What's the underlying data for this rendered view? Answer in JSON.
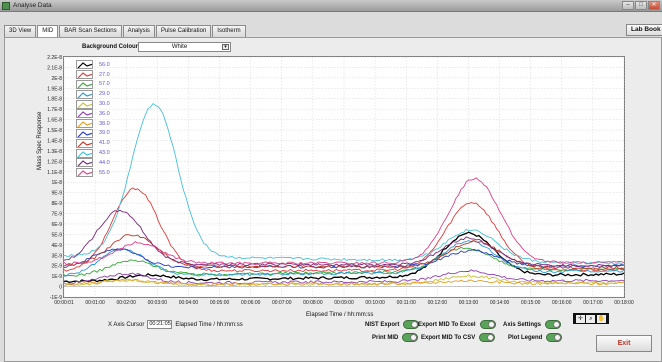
{
  "window": {
    "title": "Analyse Data"
  },
  "tabs": [
    "3D View",
    "MID",
    "BAR Scan Sections",
    "Analysis",
    "Pulse Calibration",
    "Isotherm"
  ],
  "active_tab": 1,
  "lab_book": "Lab Book",
  "background": {
    "label": "Background Colour",
    "value": "White"
  },
  "controls": {
    "x_cursor_label": "X Axis Cursor",
    "x_cursor_value": "00:21:05",
    "x_cursor_units": "Elapsed Time / hh:mm:ss",
    "nist_export": "NIST Export",
    "print_mid": "Print MID",
    "export_excel": "Export MID To Excel",
    "export_csv": "Export MID To CSV",
    "axis_settings": "Axis Settings",
    "plot_legend": "Plot Legend",
    "exit": "Exit"
  },
  "chart_data": {
    "type": "line",
    "xlabel": "Elapsed Time / hh:mm:ss",
    "ylabel": "Mass Spec Response",
    "x_ticks": [
      "00:00:01",
      "00:01:00",
      "00:02:00",
      "00:03:00",
      "00:04:00",
      "00:05:00",
      "00:06:00",
      "00:07:00",
      "00:08:00",
      "00:09:00",
      "00:10:00",
      "00:11:00",
      "00:12:00",
      "00:13:00",
      "00:14:00",
      "00:15:00",
      "00:16:00",
      "00:17:00",
      "00:18:00"
    ],
    "y_ticks": [
      "2.2E-8",
      "2.1E-8",
      "2E-8",
      "1.9E-8",
      "1.8E-8",
      "1.7E-8",
      "1.6E-8",
      "1.5E-8",
      "1.4E-8",
      "1.3E-8",
      "1.2E-8",
      "1.1E-8",
      "1E-8",
      "9E-9",
      "8E-9",
      "7E-9",
      "6E-9",
      "5E-9",
      "4E-9",
      "3E-9",
      "2E-9",
      "1E-9",
      "0",
      "-1E-9"
    ],
    "x_range_minutes": [
      0,
      18
    ],
    "y_range": [
      -1e-09,
      2.2e-08
    ],
    "grid": true,
    "series": [
      {
        "name": "56.0",
        "color": "#000000",
        "peak1": [
          2.7,
          1e-09
        ],
        "peak2": [
          13.0,
          4.6e-09
        ],
        "base": 5e-10,
        "end": 1.2e-09
      },
      {
        "name": "27.0",
        "color": "#e23a3a",
        "peak1": [
          2.3,
          9.4e-09
        ],
        "peak2": [
          13.1,
          8e-09
        ],
        "base": 1.5e-09,
        "end": 1.6e-09
      },
      {
        "name": "57.0",
        "color": "#35a835",
        "peak1": [
          2.2,
          2.4e-09
        ],
        "peak2": [
          12.9,
          3.2e-09
        ],
        "base": 1e-09,
        "end": 1.7e-09
      },
      {
        "name": "29.0",
        "color": "#2a9ad8",
        "peak1": [
          1.9,
          3.5e-09
        ],
        "peak2": [
          13.0,
          4e-09
        ],
        "base": 1e-09,
        "end": 1.5e-09
      },
      {
        "name": "30.0",
        "color": "#c9c23a",
        "peak1": [
          2.0,
          6e-10
        ],
        "peak2": [
          13.0,
          8e-10
        ],
        "base": 1e-10,
        "end": 4e-10
      },
      {
        "name": "36.0",
        "color": "#8e44ad",
        "peak1": [
          2.0,
          1.2e-09
        ],
        "peak2": [
          13.0,
          1.3e-09
        ],
        "base": 3e-10,
        "end": 6e-10
      },
      {
        "name": "38.0",
        "color": "#e6a02a",
        "peak1": [
          2.0,
          6e-10
        ],
        "peak2": [
          13.0,
          5e-10
        ],
        "base": 2e-10,
        "end": 3e-10
      },
      {
        "name": "39.0",
        "color": "#2a3fbd",
        "peak1": [
          1.7,
          3.6e-09
        ],
        "peak2": [
          13.1,
          3.3e-09
        ],
        "base": 1.8e-09,
        "end": 2e-09
      },
      {
        "name": "41.0",
        "color": "#c0392b",
        "peak1": [
          2.2,
          5e-09
        ],
        "peak2": [
          13.2,
          4.5e-09
        ],
        "base": 2e-09,
        "end": 1.8e-09
      },
      {
        "name": "43.0",
        "color": "#47c0d8",
        "peak1": [
          2.9,
          1.76e-08
        ],
        "peak2": [
          13.1,
          6e-09
        ],
        "base": 3e-09,
        "end": 2.2e-09
      },
      {
        "name": "44.0",
        "color": "#7a2a7a",
        "peak1": [
          1.8,
          7.3e-09
        ],
        "peak2": [
          13.0,
          4.8e-09
        ],
        "base": 2.2e-09,
        "end": 2e-09
      },
      {
        "name": "55.0",
        "color": "#e0408a",
        "peak1": [
          2.4,
          4.2e-09
        ],
        "peak2": [
          13.2,
          1.03e-08
        ],
        "base": 2.2e-09,
        "end": 2.3e-09
      }
    ]
  }
}
